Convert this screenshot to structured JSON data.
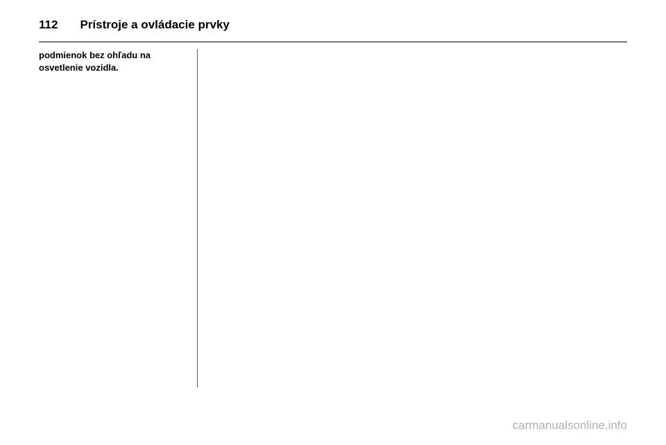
{
  "header": {
    "page_number": "112",
    "title": "Prístroje a ovládacie prvky"
  },
  "body": {
    "text_line1": "podmienok bez ohľadu na",
    "text_line2": "osvetlenie vozidla."
  },
  "watermark": "carmanualsonline.info",
  "colors": {
    "background": "#ffffff",
    "text": "#000000",
    "divider": "#555555",
    "watermark": "#b0b0b0"
  }
}
